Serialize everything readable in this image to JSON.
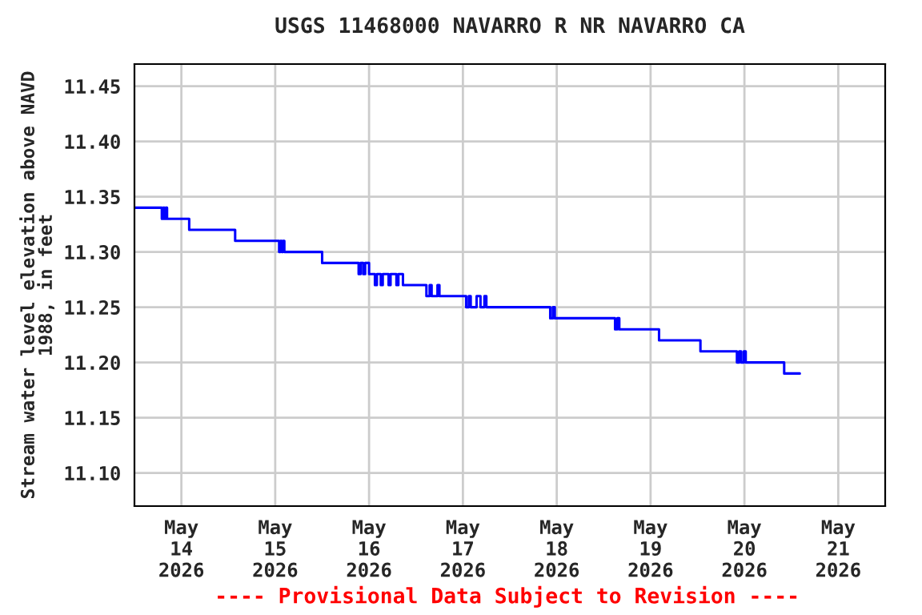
{
  "chart_data": {
    "type": "step",
    "title": "USGS 11468000 NAVARRO R NR NAVARRO CA",
    "ylabel": "Stream water level elevation above NAVD\n1988, in feet",
    "annotations": [
      "---- Provisional Data Subject to Revision ----"
    ],
    "x": [
      "2026-05-13T12:00",
      "2026-05-13T19:00",
      "2026-05-13T19:20",
      "2026-05-13T19:40",
      "2026-05-13T20:00",
      "2026-05-13T20:20",
      "2026-05-14T02:00",
      "2026-05-14T13:45",
      "2026-05-15T01:00",
      "2026-05-15T01:20",
      "2026-05-15T01:40",
      "2026-05-15T02:00",
      "2026-05-15T02:20",
      "2026-05-15T12:00",
      "2026-05-15T21:20",
      "2026-05-15T21:50",
      "2026-05-15T22:30",
      "2026-05-15T23:00",
      "2026-05-16T00:00",
      "2026-05-16T01:30",
      "2026-05-16T02:00",
      "2026-05-16T03:00",
      "2026-05-16T03:30",
      "2026-05-16T05:00",
      "2026-05-16T05:30",
      "2026-05-16T07:00",
      "2026-05-16T07:30",
      "2026-05-16T08:40",
      "2026-05-16T14:40",
      "2026-05-16T15:30",
      "2026-05-16T16:00",
      "2026-05-16T17:30",
      "2026-05-16T18:00",
      "2026-05-17T00:50",
      "2026-05-17T01:30",
      "2026-05-17T02:00",
      "2026-05-17T03:30",
      "2026-05-17T04:30",
      "2026-05-17T05:30",
      "2026-05-17T06:00",
      "2026-05-17T22:20",
      "2026-05-17T23:00",
      "2026-05-17T23:30",
      "2026-05-18T14:55",
      "2026-05-18T15:30",
      "2026-05-18T16:00",
      "2026-05-19T02:10",
      "2026-05-19T12:45",
      "2026-05-19T22:05",
      "2026-05-19T22:40",
      "2026-05-19T23:10",
      "2026-05-19T23:50",
      "2026-05-20T00:20",
      "2026-05-20T10:10",
      "2026-05-20T14:10"
    ],
    "series": [
      {
        "color": "#0000ff",
        "values": [
          11.34,
          11.33,
          11.34,
          11.33,
          11.34,
          11.33,
          11.32,
          11.31,
          11.3,
          11.31,
          11.3,
          11.31,
          11.3,
          11.29,
          11.28,
          11.29,
          11.28,
          11.29,
          11.28,
          11.27,
          11.28,
          11.27,
          11.28,
          11.27,
          11.28,
          11.27,
          11.28,
          11.27,
          11.26,
          11.27,
          11.26,
          11.27,
          11.26,
          11.25,
          11.26,
          11.25,
          11.26,
          11.25,
          11.26,
          11.25,
          11.24,
          11.25,
          11.24,
          11.23,
          11.24,
          11.23,
          11.22,
          11.21,
          11.2,
          11.21,
          11.2,
          11.21,
          11.2,
          11.19,
          11.19
        ]
      }
    ],
    "xlim": [
      "2026-05-13T12:00",
      "2026-05-21T12:00"
    ],
    "xticks": [
      {
        "value": "2026-05-14",
        "label": "May\n14\n2026"
      },
      {
        "value": "2026-05-15",
        "label": "May\n15\n2026"
      },
      {
        "value": "2026-05-16",
        "label": "May\n16\n2026"
      },
      {
        "value": "2026-05-17",
        "label": "May\n17\n2026"
      },
      {
        "value": "2026-05-18",
        "label": "May\n18\n2026"
      },
      {
        "value": "2026-05-19",
        "label": "May\n19\n2026"
      },
      {
        "value": "2026-05-20",
        "label": "May\n20\n2026"
      },
      {
        "value": "2026-05-21",
        "label": "May\n21\n2026"
      }
    ],
    "ylim": [
      11.07,
      11.47
    ],
    "yticks": [
      {
        "value": 11.1,
        "label": "11.10"
      },
      {
        "value": 11.15,
        "label": "11.15"
      },
      {
        "value": 11.2,
        "label": "11.20"
      },
      {
        "value": 11.25,
        "label": "11.25"
      },
      {
        "value": 11.3,
        "label": "11.30"
      },
      {
        "value": 11.35,
        "label": "11.35"
      },
      {
        "value": 11.4,
        "label": "11.40"
      },
      {
        "value": 11.45,
        "label": "11.45"
      }
    ],
    "grid": true
  }
}
